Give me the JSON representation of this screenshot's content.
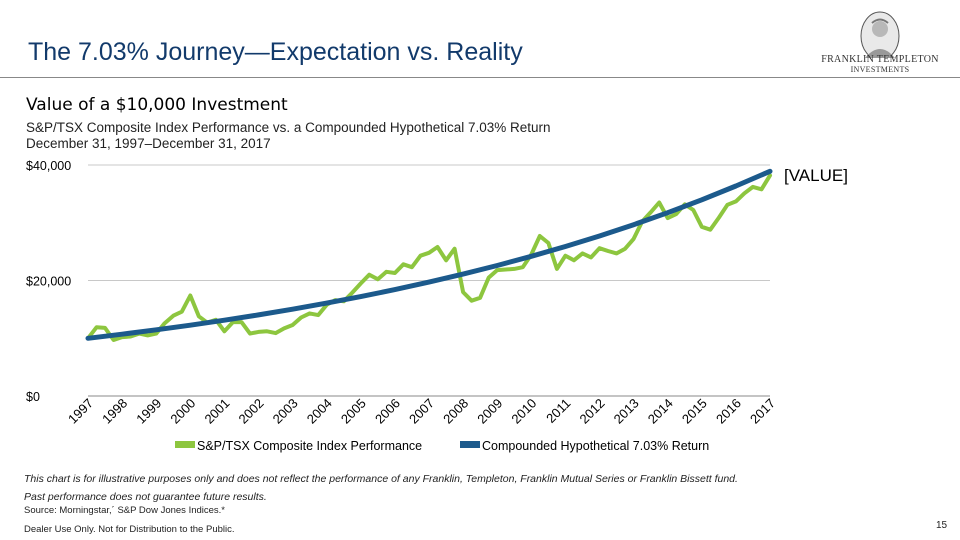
{
  "header": {
    "title": "The 7.03% Journey—Expectation vs. Reality",
    "logo_line1": "FRANKLIN TEMPLETON",
    "logo_line2": "INVESTMENTS"
  },
  "subtitle": "Value of a $10,000 Investment",
  "description_line1": "S&P/TSX Composite Index Performance vs. a Compounded Hypothetical 7.03% Return",
  "description_line2": "December 31, 1997–December 31, 2017",
  "chart_data": {
    "type": "line",
    "ylim": [
      0,
      40000
    ],
    "xlim": [
      1997,
      2017
    ],
    "y_ticks": [
      0,
      20000,
      40000
    ],
    "y_tick_labels": [
      "$0",
      "$20,000",
      "$40,000"
    ],
    "x_tick_labels": [
      "1997",
      "1998",
      "1999",
      "2000",
      "2001",
      "2002",
      "2003",
      "2004",
      "2005",
      "2006",
      "2007",
      "2008",
      "2009",
      "2010",
      "2011",
      "2012",
      "2013",
      "2014",
      "2015",
      "2016",
      "2017"
    ],
    "grid": true,
    "legend_position": "bottom",
    "end_label": "[VALUE]",
    "series": [
      {
        "name": "S&P/TSX Composite Index Performance",
        "color": "#8dc63f",
        "x": [
          1997.0,
          1997.25,
          1997.5,
          1997.75,
          1998.0,
          1998.25,
          1998.5,
          1998.75,
          1999.0,
          1999.25,
          1999.5,
          1999.75,
          2000.0,
          2000.25,
          2000.5,
          2000.75,
          2001.0,
          2001.25,
          2001.5,
          2001.75,
          2002.0,
          2002.25,
          2002.5,
          2002.75,
          2003.0,
          2003.25,
          2003.5,
          2003.75,
          2004.0,
          2004.25,
          2004.5,
          2004.75,
          2005.0,
          2005.25,
          2005.5,
          2005.75,
          2006.0,
          2006.25,
          2006.5,
          2006.75,
          2007.0,
          2007.25,
          2007.5,
          2007.75,
          2008.0,
          2008.25,
          2008.5,
          2008.75,
          2009.0,
          2009.25,
          2009.5,
          2009.75,
          2010.0,
          2010.25,
          2010.5,
          2010.75,
          2011.0,
          2011.25,
          2011.5,
          2011.75,
          2012.0,
          2012.25,
          2012.5,
          2012.75,
          2013.0,
          2013.25,
          2013.5,
          2013.75,
          2014.0,
          2014.25,
          2014.5,
          2014.75,
          2015.0,
          2015.25,
          2015.5,
          2015.75,
          2016.0,
          2016.25,
          2016.5,
          2016.75,
          2017.0
        ],
        "y": [
          10000,
          11900,
          11800,
          9700,
          10200,
          10300,
          10800,
          10500,
          10800,
          12600,
          13900,
          14600,
          17400,
          13800,
          12700,
          13200,
          11200,
          12800,
          12800,
          10800,
          11100,
          11200,
          10900,
          11700,
          12300,
          13600,
          14300,
          14000,
          15800,
          16600,
          16400,
          17900,
          19500,
          21000,
          20200,
          21500,
          21300,
          22800,
          22300,
          24300,
          24800,
          25800,
          23500,
          25500,
          18000,
          16500,
          17000,
          20500,
          21800,
          21900,
          22000,
          22300,
          24500,
          27700,
          26500,
          22000,
          24300,
          23500,
          24700,
          24000,
          25600,
          25100,
          24700,
          25500,
          27200,
          30200,
          31800,
          33500,
          30800,
          31500,
          33200,
          32200,
          29300,
          28800,
          30900,
          33100,
          33700,
          35100,
          36200,
          35800,
          38200
        ]
      },
      {
        "name": "Compounded Hypothetical 7.03% Return",
        "color": "#1c5a8c",
        "x": [
          1997,
          1998,
          1999,
          2000,
          2001,
          2002,
          2003,
          2004,
          2005,
          2006,
          2007,
          2008,
          2009,
          2010,
          2011,
          2012,
          2013,
          2014,
          2015,
          2016,
          2017
        ],
        "y": [
          10000,
          10703,
          11455,
          12261,
          13122,
          14045,
          15032,
          16089,
          17220,
          18431,
          19727,
          21113,
          22598,
          24187,
          25887,
          27707,
          29655,
          31739,
          33970,
          36358,
          38914
        ]
      }
    ]
  },
  "footer": {
    "disclaimer_line1": "This chart is for illustrative purposes only and does not reflect the performance of any Franklin, Templeton, Franklin Mutual Series or Franklin  Bissett fund.",
    "disclaimer_line2": "Past performance does not guarantee future results.",
    "source": "Source: Morningstar,´ S&P Dow Jones Indices.*",
    "dealer_note": "Dealer Use Only. Not for Distribution to the Public.",
    "page_number": "15"
  }
}
